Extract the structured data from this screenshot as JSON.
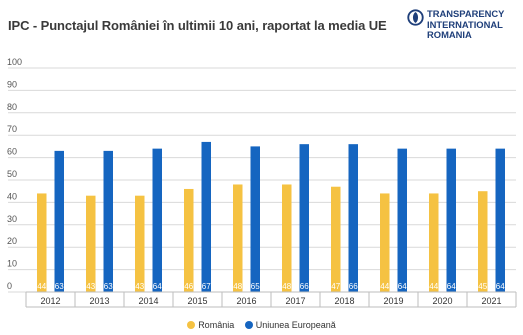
{
  "logo": {
    "icon": "transparency-globe-icon",
    "lines": [
      "TRANSPARENCY",
      "INTERNATIONAL",
      "ROMANIA"
    ],
    "color": "#1f3f7a",
    "accent": "#1f3f7a"
  },
  "chart_data": {
    "type": "bar",
    "title": "IPC - Punctajul României în ultimii 10 ani, raportat la media UE",
    "categories": [
      "2012",
      "2013",
      "2014",
      "2015",
      "2016",
      "2017",
      "2018",
      "2019",
      "2020",
      "2021"
    ],
    "series": [
      {
        "name": "România",
        "color": "#f5c242",
        "values": [
          44,
          43,
          43,
          46,
          48,
          48,
          47,
          44,
          44,
          45
        ]
      },
      {
        "name": "Uniunea Europeană",
        "color": "#1565c0",
        "values": [
          63,
          63,
          64,
          67,
          65,
          66,
          66,
          64,
          64,
          64
        ]
      }
    ],
    "ylim": [
      0,
      100
    ],
    "yticks": [
      0,
      10,
      20,
      30,
      40,
      50,
      60,
      70,
      80,
      90,
      100
    ],
    "grid": true,
    "legend_position": "bottom",
    "data_labels": true,
    "xlabel": "",
    "ylabel": ""
  }
}
